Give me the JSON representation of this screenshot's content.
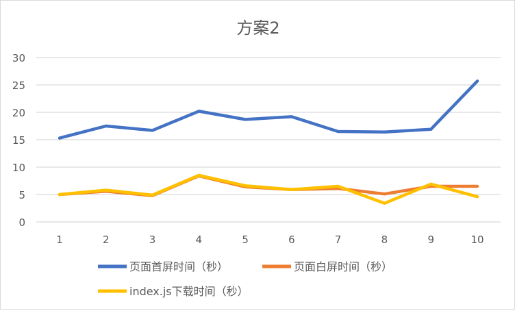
{
  "chart_data": {
    "type": "line",
    "title": "方案2",
    "xlabel": "",
    "ylabel": "",
    "x": [
      1,
      2,
      3,
      4,
      5,
      6,
      7,
      8,
      9,
      10
    ],
    "ylim": [
      0,
      30
    ],
    "yticks": [
      0,
      5,
      10,
      15,
      20,
      25,
      30
    ],
    "grid": true,
    "legend_position": "bottom",
    "series": [
      {
        "name": "页面首屏时间（秒）",
        "color": "#4472C4",
        "values": [
          15.3,
          17.5,
          16.7,
          20.2,
          18.7,
          19.2,
          16.5,
          16.4,
          16.9,
          25.7
        ]
      },
      {
        "name": "页面白屏时间（秒）",
        "color": "#ED7D31",
        "values": [
          5.0,
          5.6,
          4.8,
          8.4,
          6.4,
          5.9,
          6.1,
          5.1,
          6.5,
          6.5
        ]
      },
      {
        "name": "index.js下载时间（秒）",
        "color": "#FFC000",
        "values": [
          5.0,
          5.8,
          4.9,
          8.5,
          6.6,
          5.9,
          6.5,
          3.4,
          6.9,
          4.6
        ]
      }
    ]
  }
}
